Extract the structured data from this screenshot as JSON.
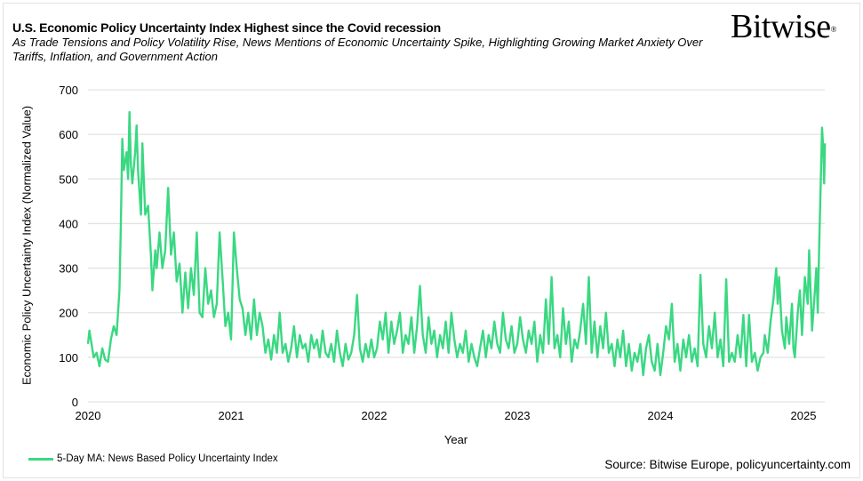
{
  "header": {
    "title": "U.S. Economic Policy Uncertainty Index Highest since the Covid recession",
    "subtitle": "As Trade Tensions and Policy Volatility Rise, News Mentions of Economic Uncertainty Spike, Highlighting Growing Market Anxiety Over Tariffs, Inflation, and Government Action",
    "logo": "Bitwise"
  },
  "source": "Source: Bitwise Europe, policyuncertainty.com",
  "colors": {
    "line": "#3ad882",
    "grid": "#e3e3e3"
  },
  "chart_data": {
    "type": "line",
    "title": "U.S. Economic Policy Uncertainty Index Highest since the Covid recession",
    "xlabel": "Year",
    "ylabel": "Economic Policy Uncertainty Index (Normalized Value)",
    "xlim": [
      2020,
      2025.15
    ],
    "ylim": [
      0,
      700
    ],
    "xticks": [
      "2020",
      "2021",
      "2022",
      "2023",
      "2024",
      "2025"
    ],
    "yticks": [
      "0",
      "100",
      "200",
      "300",
      "400",
      "500",
      "600",
      "700"
    ],
    "grid": "horizontal",
    "legend": "bottom-left",
    "series": [
      {
        "name": "5-Day MA: News Based Policy Uncertainty Index",
        "color": "#3ad882",
        "points": [
          [
            2020.0,
            130
          ],
          [
            2020.01,
            160
          ],
          [
            2020.02,
            140
          ],
          [
            2020.04,
            100
          ],
          [
            2020.06,
            110
          ],
          [
            2020.08,
            80
          ],
          [
            2020.1,
            120
          ],
          [
            2020.12,
            95
          ],
          [
            2020.14,
            90
          ],
          [
            2020.16,
            140
          ],
          [
            2020.18,
            170
          ],
          [
            2020.2,
            150
          ],
          [
            2020.22,
            250
          ],
          [
            2020.23,
            400
          ],
          [
            2020.24,
            590
          ],
          [
            2020.25,
            520
          ],
          [
            2020.27,
            560
          ],
          [
            2020.28,
            500
          ],
          [
            2020.29,
            650
          ],
          [
            2020.3,
            530
          ],
          [
            2020.31,
            490
          ],
          [
            2020.33,
            560
          ],
          [
            2020.34,
            620
          ],
          [
            2020.35,
            520
          ],
          [
            2020.37,
            420
          ],
          [
            2020.38,
            580
          ],
          [
            2020.4,
            420
          ],
          [
            2020.42,
            440
          ],
          [
            2020.44,
            330
          ],
          [
            2020.45,
            250
          ],
          [
            2020.47,
            340
          ],
          [
            2020.48,
            300
          ],
          [
            2020.5,
            380
          ],
          [
            2020.52,
            300
          ],
          [
            2020.54,
            340
          ],
          [
            2020.56,
            480
          ],
          [
            2020.58,
            330
          ],
          [
            2020.6,
            380
          ],
          [
            2020.62,
            270
          ],
          [
            2020.64,
            310
          ],
          [
            2020.66,
            200
          ],
          [
            2020.68,
            290
          ],
          [
            2020.7,
            210
          ],
          [
            2020.72,
            300
          ],
          [
            2020.74,
            240
          ],
          [
            2020.76,
            380
          ],
          [
            2020.78,
            200
          ],
          [
            2020.8,
            190
          ],
          [
            2020.82,
            300
          ],
          [
            2020.84,
            220
          ],
          [
            2020.86,
            250
          ],
          [
            2020.88,
            190
          ],
          [
            2020.9,
            220
          ],
          [
            2020.92,
            380
          ],
          [
            2020.94,
            280
          ],
          [
            2020.96,
            170
          ],
          [
            2020.98,
            200
          ],
          [
            2021.0,
            140
          ],
          [
            2021.02,
            380
          ],
          [
            2021.04,
            300
          ],
          [
            2021.06,
            230
          ],
          [
            2021.08,
            210
          ],
          [
            2021.1,
            150
          ],
          [
            2021.12,
            200
          ],
          [
            2021.14,
            140
          ],
          [
            2021.16,
            230
          ],
          [
            2021.18,
            150
          ],
          [
            2021.2,
            200
          ],
          [
            2021.22,
            170
          ],
          [
            2021.24,
            110
          ],
          [
            2021.26,
            140
          ],
          [
            2021.28,
            95
          ],
          [
            2021.3,
            150
          ],
          [
            2021.32,
            110
          ],
          [
            2021.34,
            200
          ],
          [
            2021.36,
            110
          ],
          [
            2021.38,
            130
          ],
          [
            2021.4,
            90
          ],
          [
            2021.42,
            120
          ],
          [
            2021.44,
            170
          ],
          [
            2021.46,
            100
          ],
          [
            2021.48,
            150
          ],
          [
            2021.5,
            120
          ],
          [
            2021.52,
            130
          ],
          [
            2021.54,
            90
          ],
          [
            2021.56,
            150
          ],
          [
            2021.58,
            120
          ],
          [
            2021.6,
            140
          ],
          [
            2021.62,
            100
          ],
          [
            2021.64,
            160
          ],
          [
            2021.66,
            110
          ],
          [
            2021.68,
            100
          ],
          [
            2021.7,
            130
          ],
          [
            2021.72,
            90
          ],
          [
            2021.74,
            160
          ],
          [
            2021.76,
            110
          ],
          [
            2021.78,
            80
          ],
          [
            2021.8,
            130
          ],
          [
            2021.82,
            95
          ],
          [
            2021.84,
            110
          ],
          [
            2021.86,
            150
          ],
          [
            2021.88,
            240
          ],
          [
            2021.9,
            120
          ],
          [
            2021.92,
            90
          ],
          [
            2021.94,
            130
          ],
          [
            2021.96,
            100
          ],
          [
            2021.98,
            140
          ],
          [
            2022.0,
            100
          ],
          [
            2022.02,
            120
          ],
          [
            2022.04,
            180
          ],
          [
            2022.06,
            140
          ],
          [
            2022.08,
            200
          ],
          [
            2022.1,
            110
          ],
          [
            2022.12,
            180
          ],
          [
            2022.14,
            130
          ],
          [
            2022.16,
            160
          ],
          [
            2022.18,
            200
          ],
          [
            2022.2,
            110
          ],
          [
            2022.22,
            150
          ],
          [
            2022.24,
            130
          ],
          [
            2022.26,
            190
          ],
          [
            2022.28,
            110
          ],
          [
            2022.3,
            170
          ],
          [
            2022.32,
            260
          ],
          [
            2022.34,
            150
          ],
          [
            2022.36,
            110
          ],
          [
            2022.38,
            190
          ],
          [
            2022.4,
            130
          ],
          [
            2022.42,
            160
          ],
          [
            2022.44,
            100
          ],
          [
            2022.46,
            150
          ],
          [
            2022.48,
            120
          ],
          [
            2022.5,
            180
          ],
          [
            2022.52,
            110
          ],
          [
            2022.54,
            200
          ],
          [
            2022.56,
            140
          ],
          [
            2022.58,
            100
          ],
          [
            2022.6,
            130
          ],
          [
            2022.62,
            110
          ],
          [
            2022.64,
            160
          ],
          [
            2022.66,
            90
          ],
          [
            2022.68,
            130
          ],
          [
            2022.7,
            100
          ],
          [
            2022.72,
            80
          ],
          [
            2022.74,
            120
          ],
          [
            2022.76,
            160
          ],
          [
            2022.78,
            100
          ],
          [
            2022.8,
            150
          ],
          [
            2022.82,
            120
          ],
          [
            2022.84,
            180
          ],
          [
            2022.86,
            130
          ],
          [
            2022.88,
            110
          ],
          [
            2022.9,
            200
          ],
          [
            2022.92,
            140
          ],
          [
            2022.94,
            120
          ],
          [
            2022.96,
            170
          ],
          [
            2022.98,
            110
          ],
          [
            2023.0,
            130
          ],
          [
            2023.02,
            190
          ],
          [
            2023.04,
            140
          ],
          [
            2023.06,
            110
          ],
          [
            2023.08,
            160
          ],
          [
            2023.1,
            130
          ],
          [
            2023.12,
            180
          ],
          [
            2023.14,
            90
          ],
          [
            2023.16,
            150
          ],
          [
            2023.18,
            110
          ],
          [
            2023.2,
            230
          ],
          [
            2023.22,
            130
          ],
          [
            2023.24,
            280
          ],
          [
            2023.26,
            120
          ],
          [
            2023.28,
            150
          ],
          [
            2023.3,
            100
          ],
          [
            2023.32,
            210
          ],
          [
            2023.34,
            130
          ],
          [
            2023.36,
            180
          ],
          [
            2023.38,
            90
          ],
          [
            2023.4,
            140
          ],
          [
            2023.42,
            120
          ],
          [
            2023.44,
            160
          ],
          [
            2023.46,
            220
          ],
          [
            2023.48,
            130
          ],
          [
            2023.5,
            280
          ],
          [
            2023.52,
            110
          ],
          [
            2023.54,
            180
          ],
          [
            2023.56,
            100
          ],
          [
            2023.58,
            170
          ],
          [
            2023.6,
            120
          ],
          [
            2023.62,
            200
          ],
          [
            2023.64,
            110
          ],
          [
            2023.66,
            130
          ],
          [
            2023.68,
            80
          ],
          [
            2023.7,
            140
          ],
          [
            2023.72,
            100
          ],
          [
            2023.74,
            160
          ],
          [
            2023.76,
            80
          ],
          [
            2023.78,
            130
          ],
          [
            2023.8,
            70
          ],
          [
            2023.82,
            110
          ],
          [
            2023.84,
            90
          ],
          [
            2023.86,
            130
          ],
          [
            2023.88,
            60
          ],
          [
            2023.9,
            120
          ],
          [
            2023.92,
            150
          ],
          [
            2023.94,
            90
          ],
          [
            2023.96,
            70
          ],
          [
            2023.98,
            130
          ],
          [
            2024.0,
            60
          ],
          [
            2024.02,
            110
          ],
          [
            2024.04,
            170
          ],
          [
            2024.06,
            140
          ],
          [
            2024.08,
            220
          ],
          [
            2024.1,
            90
          ],
          [
            2024.12,
            130
          ],
          [
            2024.14,
            70
          ],
          [
            2024.16,
            140
          ],
          [
            2024.18,
            100
          ],
          [
            2024.2,
            150
          ],
          [
            2024.22,
            90
          ],
          [
            2024.24,
            120
          ],
          [
            2024.26,
            80
          ],
          [
            2024.28,
            285
          ],
          [
            2024.3,
            130
          ],
          [
            2024.32,
            100
          ],
          [
            2024.34,
            170
          ],
          [
            2024.36,
            120
          ],
          [
            2024.38,
            200
          ],
          [
            2024.4,
            100
          ],
          [
            2024.42,
            140
          ],
          [
            2024.44,
            80
          ],
          [
            2024.46,
            275
          ],
          [
            2024.48,
            90
          ],
          [
            2024.5,
            110
          ],
          [
            2024.52,
            90
          ],
          [
            2024.54,
            150
          ],
          [
            2024.56,
            100
          ],
          [
            2024.58,
            195
          ],
          [
            2024.6,
            80
          ],
          [
            2024.62,
            195
          ],
          [
            2024.64,
            90
          ],
          [
            2024.66,
            110
          ],
          [
            2024.68,
            70
          ],
          [
            2024.7,
            100
          ],
          [
            2024.72,
            110
          ],
          [
            2024.73,
            150
          ],
          [
            2024.75,
            110
          ],
          [
            2024.77,
            180
          ],
          [
            2024.79,
            230
          ],
          [
            2024.81,
            300
          ],
          [
            2024.82,
            220
          ],
          [
            2024.83,
            280
          ],
          [
            2024.85,
            160
          ],
          [
            2024.87,
            120
          ],
          [
            2024.88,
            190
          ],
          [
            2024.9,
            130
          ],
          [
            2024.92,
            220
          ],
          [
            2024.93,
            120
          ],
          [
            2024.94,
            100
          ],
          [
            2024.96,
            200
          ],
          [
            2024.975,
            250
          ],
          [
            2024.99,
            150
          ],
          [
            2025.01,
            280
          ],
          [
            2025.03,
            220
          ],
          [
            2025.04,
            340
          ],
          [
            2025.05,
            250
          ],
          [
            2025.06,
            160
          ],
          [
            2025.08,
            250
          ],
          [
            2025.09,
            300
          ],
          [
            2025.1,
            200
          ],
          [
            2025.11,
            350
          ],
          [
            2025.12,
            480
          ],
          [
            2025.13,
            615
          ],
          [
            2025.14,
            560
          ],
          [
            2025.145,
            490
          ],
          [
            2025.15,
            580
          ]
        ]
      }
    ]
  }
}
